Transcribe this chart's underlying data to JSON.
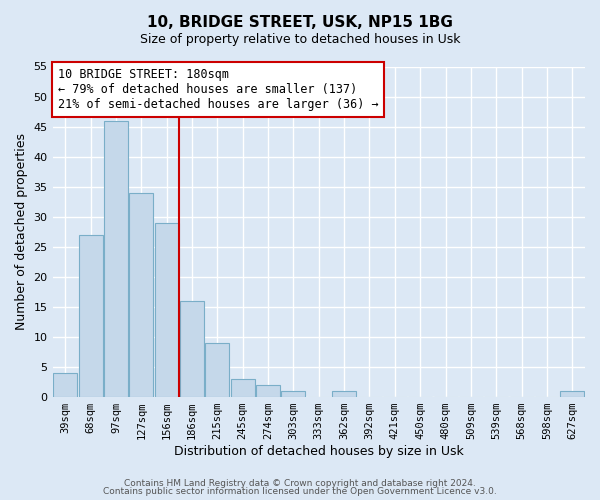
{
  "title": "10, BRIDGE STREET, USK, NP15 1BG",
  "subtitle": "Size of property relative to detached houses in Usk",
  "xlabel": "Distribution of detached houses by size in Usk",
  "ylabel": "Number of detached properties",
  "bar_color": "#c5d8ea",
  "bar_edge_color": "#7aaec8",
  "categories": [
    "39sqm",
    "68sqm",
    "97sqm",
    "127sqm",
    "156sqm",
    "186sqm",
    "215sqm",
    "245sqm",
    "274sqm",
    "303sqm",
    "333sqm",
    "362sqm",
    "392sqm",
    "421sqm",
    "450sqm",
    "480sqm",
    "509sqm",
    "539sqm",
    "568sqm",
    "598sqm",
    "627sqm"
  ],
  "values": [
    4,
    27,
    46,
    34,
    29,
    16,
    9,
    3,
    2,
    1,
    0,
    1,
    0,
    0,
    0,
    0,
    0,
    0,
    0,
    0,
    1
  ],
  "ylim": [
    0,
    55
  ],
  "yticks": [
    0,
    5,
    10,
    15,
    20,
    25,
    30,
    35,
    40,
    45,
    50,
    55
  ],
  "vline_index": 4.5,
  "vline_color": "#cc0000",
  "annotation_title": "10 BRIDGE STREET: 180sqm",
  "annotation_line1": "← 79% of detached houses are smaller (137)",
  "annotation_line2": "21% of semi-detached houses are larger (36) →",
  "annotation_box_color": "#ffffff",
  "annotation_box_edge": "#cc0000",
  "footer_line1": "Contains HM Land Registry data © Crown copyright and database right 2024.",
  "footer_line2": "Contains public sector information licensed under the Open Government Licence v3.0.",
  "background_color": "#dce8f5",
  "plot_bg_color": "#dce8f5",
  "grid_color": "#ffffff",
  "fig_width": 6.0,
  "fig_height": 5.0,
  "dpi": 100
}
